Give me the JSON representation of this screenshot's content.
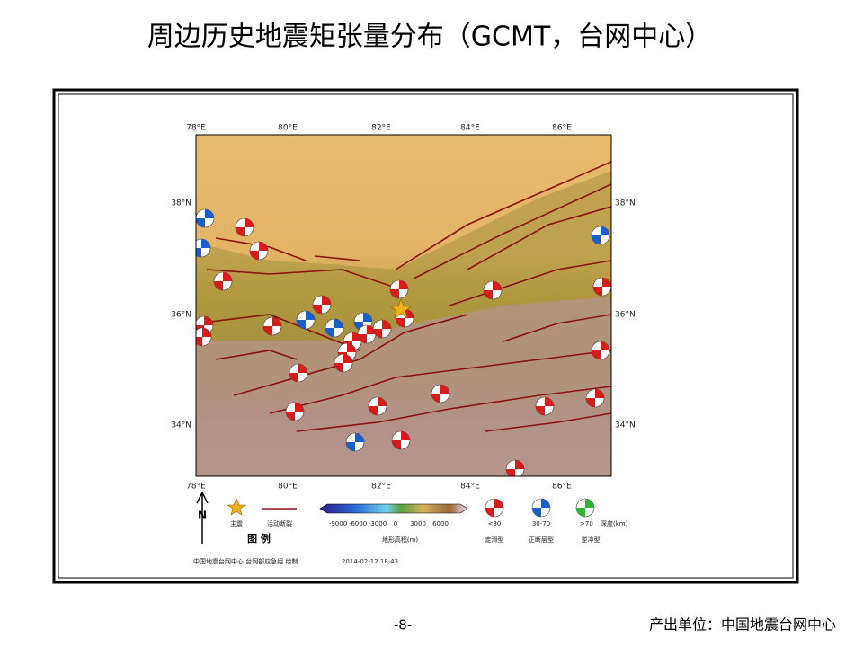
{
  "title": "周边历史地震矩张量分布（GCMT，台网中心）",
  "map": {
    "lon_labels": [
      "78°E",
      "80°E",
      "82°E",
      "84°E",
      "86°E"
    ],
    "lat_labels": [
      "38°N",
      "36°N",
      "34°N"
    ],
    "legend": {
      "north": "N",
      "mainshock": "主震",
      "fault": "活动断裂",
      "legend_title": "图  例",
      "elevation_ticks": [
        "-9000",
        "-6000",
        "-3000",
        "0",
        "3000",
        "6000"
      ],
      "elevation_label": "地形高程(m)",
      "depth_classes": [
        "<30",
        "30-70",
        ">70"
      ],
      "depth_unit": "深度(km)",
      "mechanisms": [
        "走滑型",
        "正断层型",
        "逆冲型"
      ]
    },
    "credit": "中国地震台网中心 台网部应急组 绘制",
    "timestamp": "2014-02-12 18:43"
  },
  "footer": {
    "page": "-8-",
    "producer": "产出单位：中国地震台网中心"
  }
}
